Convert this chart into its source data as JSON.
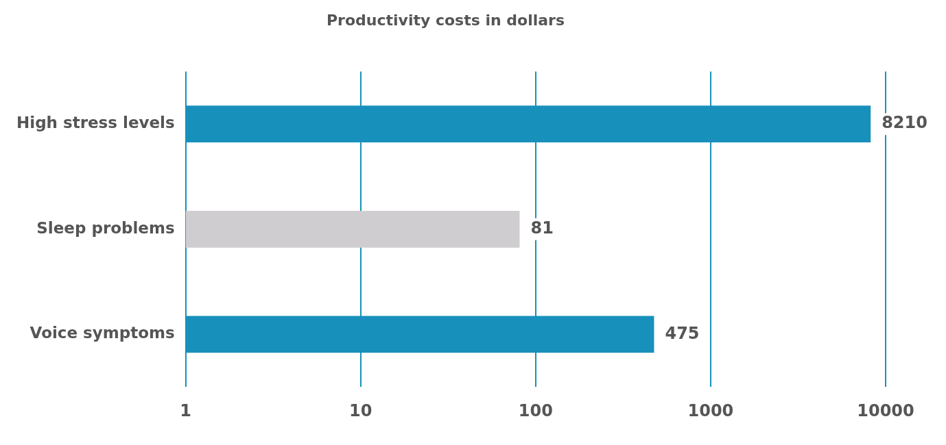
{
  "chart_data": {
    "type": "bar",
    "orientation": "horizontal",
    "title": "Productivity costs in dollars",
    "categories": [
      "High stress levels",
      "Sleep problems",
      "Voice symptoms"
    ],
    "values": [
      8210,
      81,
      475
    ],
    "colors": [
      "#1790bb",
      "#cfcdcf",
      "#1790bb"
    ],
    "log": "x",
    "xlim": [
      1,
      10000
    ],
    "xticks": [
      1,
      10,
      100,
      1000,
      10000
    ],
    "grid": "x",
    "data_labels": true
  }
}
